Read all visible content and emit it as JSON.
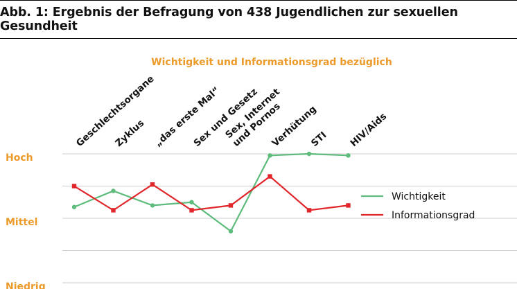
{
  "header": {
    "title": "Abb. 1: Ergebnis der Befragung von 438 Jugendlichen zur sexuellen Gesundheit"
  },
  "chart_data": {
    "type": "line",
    "subtitle": "Wichtigkeit und Informationsgrad bezüglich",
    "categories": [
      [
        "Geschlechtsorgane"
      ],
      [
        "Zyklus"
      ],
      [
        "„das erste Mal“"
      ],
      [
        "Sex und Gesetz"
      ],
      [
        "Sex, Internet",
        "und Pornos"
      ],
      [
        "Verhütung"
      ],
      [
        "STI"
      ],
      [
        "HIV/Aids"
      ]
    ],
    "y_levels": [
      "Hoch",
      "Mittel",
      "Niedrig"
    ],
    "ylim": [
      0,
      4
    ],
    "grid": true,
    "legend_position": "right",
    "series": [
      {
        "name": "Wichtigkeit",
        "color": "#5dbb7b",
        "marker": "circle",
        "values": [
          2.35,
          2.85,
          2.4,
          2.5,
          1.6,
          3.95,
          4.0,
          3.95
        ]
      },
      {
        "name": "Informationsgrad",
        "color": "#e0262b",
        "marker": "square",
        "values": [
          3.0,
          2.25,
          3.05,
          2.25,
          2.4,
          3.3,
          2.25,
          2.4
        ]
      }
    ]
  }
}
